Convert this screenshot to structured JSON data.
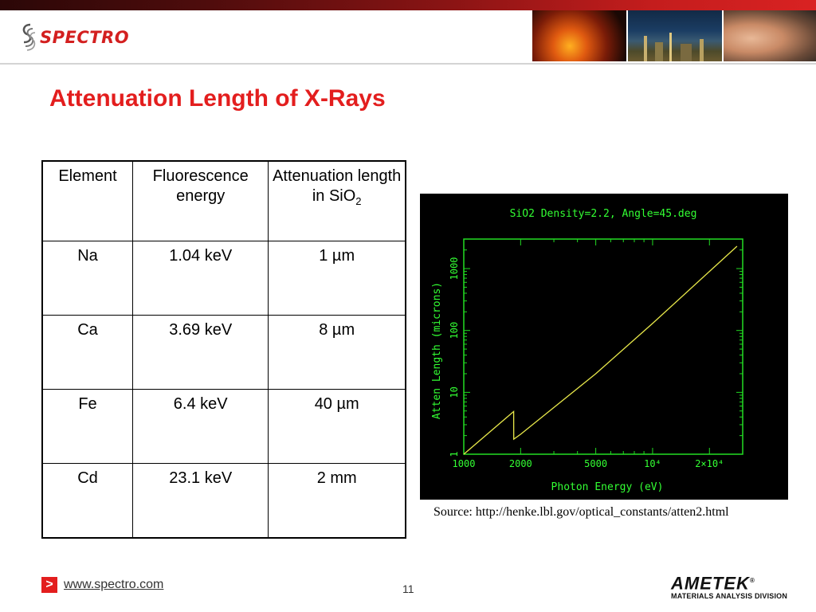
{
  "header": {
    "logo_text": "SPECTRO",
    "brand_color": "#d31f1f"
  },
  "title": "Attenuation Length of X-Rays",
  "table": {
    "headers": [
      "Element",
      "Fluorescence energy",
      "Attenuation length in SiO",
      "2"
    ],
    "rows": [
      [
        "Na",
        "1.04 keV",
        "1 µm"
      ],
      [
        "Ca",
        "3.69 keV",
        "8 µm"
      ],
      [
        "Fe",
        "6.4 keV",
        "40 µm"
      ],
      [
        "Cd",
        "23.1 keV",
        "2 mm"
      ]
    ]
  },
  "chart_data": {
    "type": "line",
    "title": "SiO2 Density=2.2, Angle=45.deg",
    "xlabel": "Photon Energy (eV)",
    "ylabel": "Atten Length (microns)",
    "x_scale": "log",
    "y_scale": "log",
    "xlim": [
      1000,
      30000
    ],
    "ylim": [
      1,
      3000
    ],
    "xticks": [
      "1000",
      "2000",
      "5000",
      "10⁴",
      "2×10⁴"
    ],
    "yticks": [
      "1",
      "10",
      "100",
      "1000"
    ],
    "x": [
      1000,
      1838,
      1840,
      2000,
      5000,
      10000,
      20000,
      28000
    ],
    "y": [
      1.0,
      4.9,
      1.75,
      2.1,
      20,
      130,
      900,
      2300
    ],
    "frame_color": "#22dd22",
    "line_color": "#e8e84a",
    "text_color": "#33ff33",
    "background": "#000000"
  },
  "source": "Source: http://henke.lbl.gov/optical_constants/atten2.html",
  "footer": {
    "link": "www.spectro.com",
    "arrow": ">",
    "page": "11",
    "company": "AMETEK",
    "registered": "®",
    "division": "MATERIALS ANALYSIS DIVISION"
  }
}
